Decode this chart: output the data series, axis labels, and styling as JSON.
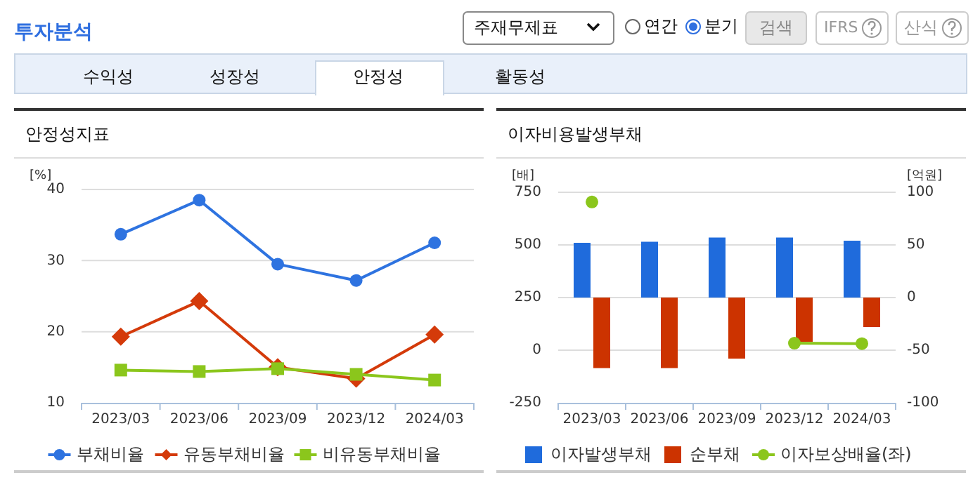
{
  "chart_data": [
    {
      "type": "other",
      "title": "투자분석",
      "annotations": [
        "주재무제표",
        "연간",
        "분기",
        "검색",
        "IFRS",
        "산식",
        "수익성",
        "성장성",
        "안정성",
        "활동성"
      ]
    },
    {
      "type": "line",
      "title": "안정성지표",
      "ylabel": "[%]",
      "categories": [
        "2023/03",
        "2023/06",
        "2023/09",
        "2023/12",
        "2024/03"
      ],
      "ylim": [
        10,
        40
      ],
      "yticks": [
        10,
        20,
        30,
        40
      ],
      "grid": "y",
      "legend": "bottom",
      "series": [
        {
          "name": "부채비율",
          "color": "#2e73e0",
          "marker": "circle",
          "values": [
            33.7,
            38.5,
            29.5,
            27.2,
            32.5
          ]
        },
        {
          "name": "유동부채비율",
          "color": "#d43a0a",
          "marker": "diamond",
          "values": [
            19.3,
            24.3,
            15.0,
            13.4,
            19.6
          ]
        },
        {
          "name": "비유동부채비율",
          "color": "#8bc61c",
          "marker": "square",
          "values": [
            14.6,
            14.4,
            14.8,
            14.0,
            13.2
          ]
        }
      ]
    },
    {
      "type": "bar",
      "title": "이자비용발생부채",
      "ylabel": "[배]",
      "y2label": "[억원]",
      "categories": [
        "2023/03",
        "2023/06",
        "2023/09",
        "2023/12",
        "2024/03"
      ],
      "ylim": [
        -250,
        750
      ],
      "yticks": [
        -250,
        0,
        250,
        500,
        750
      ],
      "y2lim": [
        -100,
        100
      ],
      "y2ticks": [
        -100,
        -50,
        0,
        50,
        100
      ],
      "grid": "y",
      "legend": "bottom",
      "series": [
        {
          "name": "이자발생부채",
          "color": "#1f6bdc",
          "axis": "y2",
          "values": [
            52,
            53,
            57,
            57,
            54
          ]
        },
        {
          "name": "순부채",
          "color": "#cc3300",
          "axis": "y2",
          "values": [
            -67,
            -67,
            -58,
            -42,
            -28
          ]
        },
        {
          "name": "이자보상배율(좌)",
          "color": "#8bc61c",
          "type": "line",
          "marker": "circle",
          "values": [
            704,
            null,
            null,
            33,
            31
          ]
        }
      ]
    }
  ]
}
